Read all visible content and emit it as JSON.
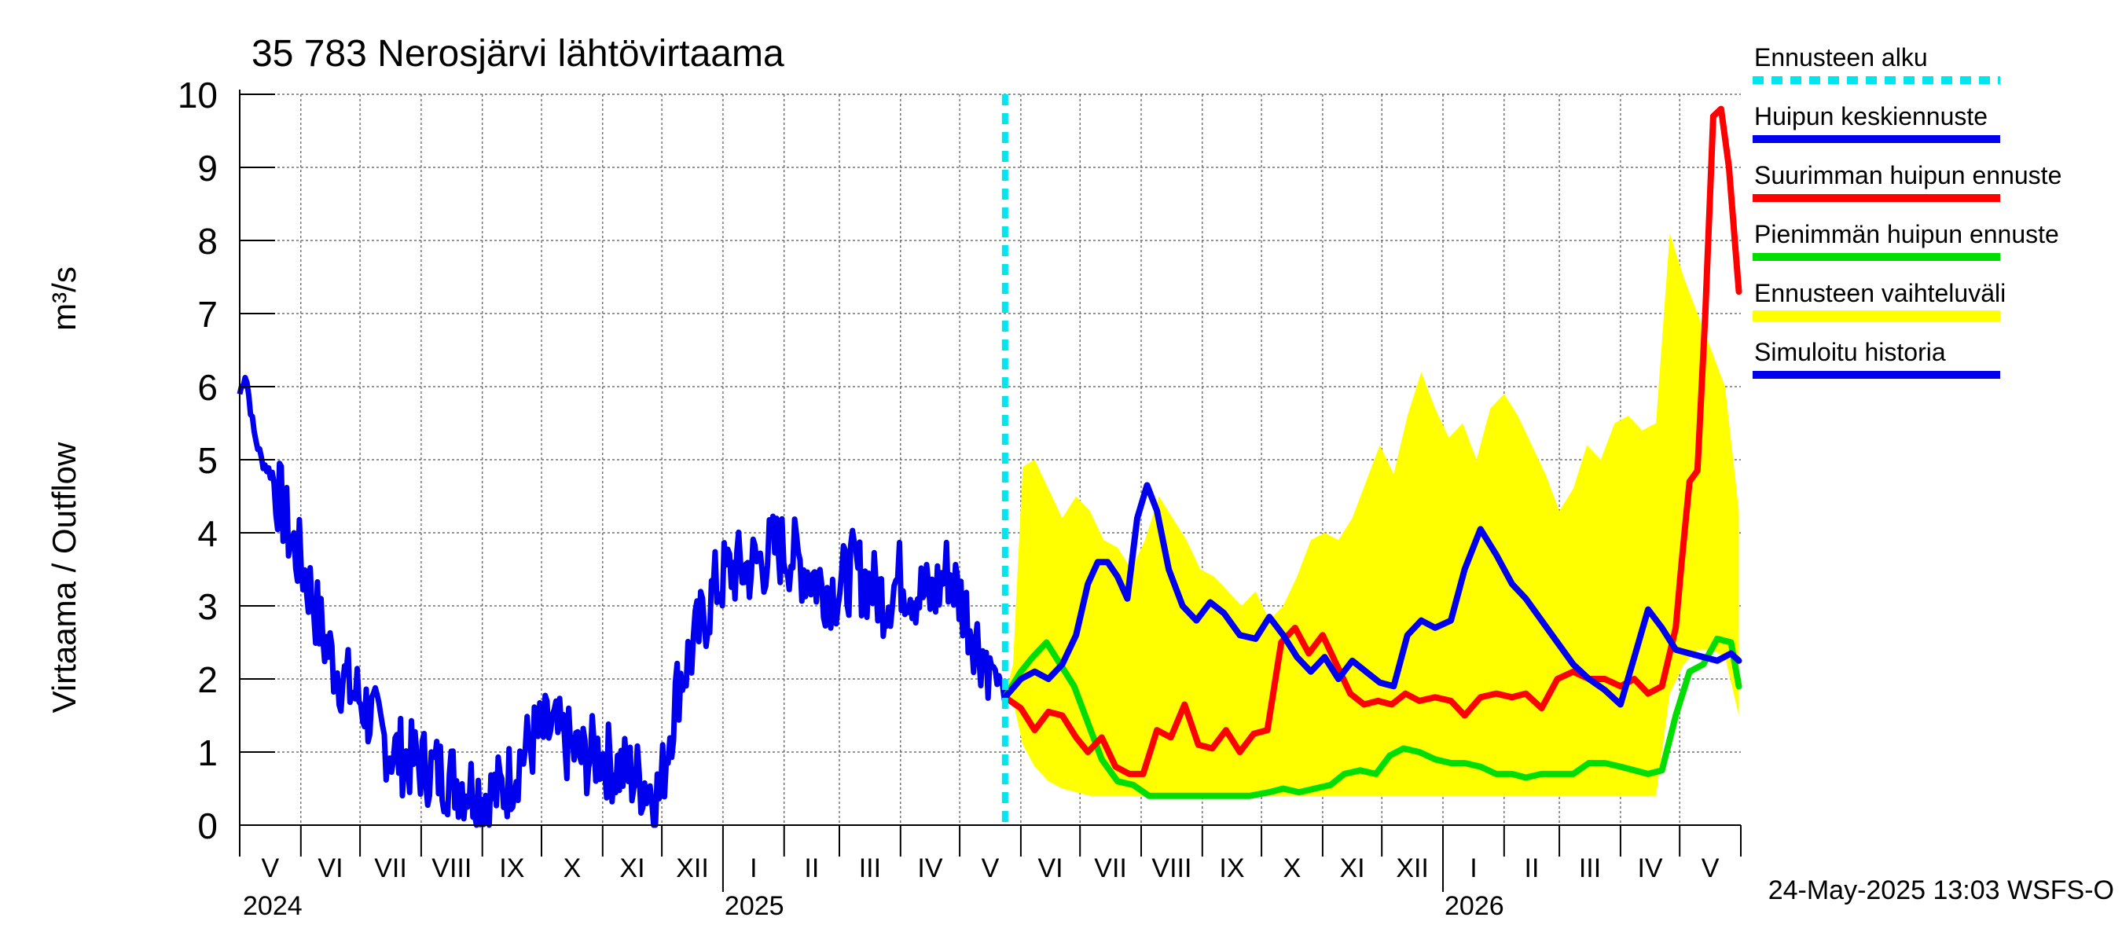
{
  "chart_data": {
    "type": "line",
    "title": "35 783 Nerosjärvi lähtövirtaama",
    "ylabel": "Virtaama / Outflow",
    "yunit": "m³/s",
    "ylim": [
      0,
      10
    ],
    "yticks": [
      0,
      1,
      2,
      3,
      4,
      5,
      6,
      7,
      8,
      9,
      10
    ],
    "xlim": [
      "2024-05-01",
      "2026-05-31"
    ],
    "month_labels": [
      "V",
      "VI",
      "VII",
      "VIII",
      "IX",
      "X",
      "XI",
      "XII",
      "I",
      "II",
      "III",
      "IV",
      "V",
      "VI",
      "VII",
      "VIII",
      "IX",
      "X",
      "XI",
      "XII",
      "I",
      "II",
      "III",
      "IV",
      "V"
    ],
    "year_labels": [
      "2024",
      "2025",
      "2026"
    ],
    "grid": true,
    "legend_position": "right",
    "footer": "24-May-2025 13:03 WSFS-O",
    "forecast_start": "2025-05-24",
    "colors": {
      "forecast_start": "#00e5ee",
      "mean_peak": "#0000ee",
      "max_peak": "#ff0000",
      "min_peak": "#00dd00",
      "range": "#ffff00",
      "history": "#0000ee"
    },
    "series": [
      {
        "name": "Simuloitu historia",
        "key": "history",
        "x": [
          "2024-05-01",
          "2024-05-04",
          "2024-05-08",
          "2024-05-12",
          "2024-05-17",
          "2024-05-22",
          "2024-05-27",
          "2024-06-01",
          "2024-06-06",
          "2024-06-12",
          "2024-06-18",
          "2024-06-25",
          "2024-07-02",
          "2024-07-10",
          "2024-07-18",
          "2024-07-26",
          "2024-08-04",
          "2024-08-12",
          "2024-08-20",
          "2024-08-28",
          "2024-09-05",
          "2024-09-12",
          "2024-09-20",
          "2024-09-28",
          "2024-10-06",
          "2024-10-14",
          "2024-10-22",
          "2024-10-30",
          "2024-11-07",
          "2024-11-15",
          "2024-11-22",
          "2024-11-30",
          "2024-12-05",
          "2024-12-10",
          "2024-12-15",
          "2024-12-22",
          "2024-12-29",
          "2025-01-05",
          "2025-01-12",
          "2025-01-20",
          "2025-01-28",
          "2025-02-05",
          "2025-02-12",
          "2025-02-20",
          "2025-02-28",
          "2025-03-08",
          "2025-03-16",
          "2025-03-24",
          "2025-04-01",
          "2025-04-09",
          "2025-04-17",
          "2025-04-25",
          "2025-05-03",
          "2025-05-10",
          "2025-05-17",
          "2025-05-24"
        ],
        "y": [
          5.9,
          6.2,
          5.4,
          5.0,
          4.8,
          4.4,
          3.9,
          3.6,
          3.2,
          2.6,
          2.2,
          1.9,
          1.7,
          1.3,
          1.0,
          0.9,
          0.8,
          0.7,
          0.6,
          0.5,
          0.4,
          0.5,
          0.9,
          1.2,
          1.3,
          1.1,
          0.9,
          1.0,
          0.8,
          0.7,
          0.6,
          0.4,
          1.3,
          2.0,
          2.3,
          2.8,
          3.3,
          3.5,
          3.5,
          3.6,
          3.8,
          3.7,
          3.5,
          3.3,
          3.2,
          3.5,
          3.3,
          3.1,
          3.4,
          3.2,
          3.1,
          3.5,
          3.0,
          2.5,
          2.2,
          1.75
        ]
      },
      {
        "name": "Huipun keskiennuste",
        "key": "mean_peak",
        "x": [
          "2025-05-24",
          "2025-06-01",
          "2025-06-08",
          "2025-06-15",
          "2025-06-22",
          "2025-06-29",
          "2025-07-05",
          "2025-07-10",
          "2025-07-15",
          "2025-07-20",
          "2025-07-25",
          "2025-07-30",
          "2025-08-04",
          "2025-08-09",
          "2025-08-15",
          "2025-08-22",
          "2025-08-29",
          "2025-09-05",
          "2025-09-12",
          "2025-09-20",
          "2025-09-28",
          "2025-10-05",
          "2025-10-12",
          "2025-10-19",
          "2025-10-26",
          "2025-11-02",
          "2025-11-09",
          "2025-11-16",
          "2025-11-23",
          "2025-11-30",
          "2025-12-07",
          "2025-12-14",
          "2025-12-21",
          "2025-12-28",
          "2026-01-05",
          "2026-01-12",
          "2026-01-20",
          "2026-01-28",
          "2026-02-05",
          "2026-02-12",
          "2026-02-20",
          "2026-02-28",
          "2026-03-08",
          "2026-03-16",
          "2026-03-24",
          "2026-04-01",
          "2026-04-08",
          "2026-04-15",
          "2026-04-22",
          "2026-04-29",
          "2026-05-06",
          "2026-05-13",
          "2026-05-20",
          "2026-05-27",
          "2026-05-31"
        ],
        "y": [
          1.75,
          2.0,
          2.1,
          2.0,
          2.2,
          2.6,
          3.3,
          3.6,
          3.6,
          3.4,
          3.1,
          4.2,
          4.65,
          4.3,
          3.5,
          3.0,
          2.8,
          3.05,
          2.9,
          2.6,
          2.55,
          2.85,
          2.6,
          2.3,
          2.1,
          2.3,
          2.0,
          2.25,
          2.1,
          1.95,
          1.9,
          2.6,
          2.8,
          2.7,
          2.8,
          3.5,
          4.05,
          3.7,
          3.3,
          3.1,
          2.8,
          2.5,
          2.2,
          2.0,
          1.85,
          1.65,
          2.3,
          2.95,
          2.7,
          2.4,
          2.35,
          2.3,
          2.25,
          2.35,
          2.25
        ]
      },
      {
        "name": "Suurimman huipun ennuste",
        "key": "max_peak",
        "x": [
          "2025-05-24",
          "2025-06-01",
          "2025-06-08",
          "2025-06-15",
          "2025-06-22",
          "2025-06-29",
          "2025-07-05",
          "2025-07-12",
          "2025-07-19",
          "2025-07-26",
          "2025-08-02",
          "2025-08-09",
          "2025-08-16",
          "2025-08-23",
          "2025-08-30",
          "2025-09-06",
          "2025-09-13",
          "2025-09-20",
          "2025-09-27",
          "2025-10-04",
          "2025-10-11",
          "2025-10-18",
          "2025-10-25",
          "2025-11-01",
          "2025-11-08",
          "2025-11-15",
          "2025-11-22",
          "2025-11-29",
          "2025-12-06",
          "2025-12-13",
          "2025-12-20",
          "2025-12-28",
          "2026-01-05",
          "2026-01-12",
          "2026-01-20",
          "2026-01-28",
          "2026-02-05",
          "2026-02-12",
          "2026-02-20",
          "2026-02-28",
          "2026-03-08",
          "2026-03-16",
          "2026-03-24",
          "2026-04-01",
          "2026-04-08",
          "2026-04-15",
          "2026-04-22",
          "2026-04-29",
          "2026-05-02",
          "2026-05-06",
          "2026-05-10",
          "2026-05-14",
          "2026-05-18",
          "2026-05-22",
          "2026-05-26",
          "2026-05-31"
        ],
        "y": [
          1.75,
          1.6,
          1.3,
          1.55,
          1.5,
          1.2,
          1.0,
          1.2,
          0.8,
          0.7,
          0.7,
          1.3,
          1.2,
          1.65,
          1.1,
          1.05,
          1.3,
          1.0,
          1.25,
          1.3,
          2.5,
          2.7,
          2.35,
          2.6,
          2.2,
          1.8,
          1.65,
          1.7,
          1.65,
          1.8,
          1.7,
          1.75,
          1.7,
          1.5,
          1.75,
          1.8,
          1.75,
          1.8,
          1.6,
          2.0,
          2.1,
          2.0,
          2.0,
          1.9,
          2.0,
          1.8,
          1.9,
          2.7,
          3.6,
          4.7,
          4.85,
          7.0,
          9.7,
          9.8,
          9.0,
          7.3
        ]
      },
      {
        "name": "Pienimmän huipun ennuste",
        "key": "min_peak",
        "x": [
          "2025-05-24",
          "2025-06-01",
          "2025-06-07",
          "2025-06-14",
          "2025-06-21",
          "2025-06-28",
          "2025-07-05",
          "2025-07-12",
          "2025-07-20",
          "2025-07-28",
          "2025-08-05",
          "2025-08-15",
          "2025-08-25",
          "2025-09-05",
          "2025-09-15",
          "2025-09-25",
          "2025-10-05",
          "2025-10-12",
          "2025-10-20",
          "2025-10-28",
          "2025-11-05",
          "2025-11-12",
          "2025-11-20",
          "2025-11-28",
          "2025-12-05",
          "2025-12-12",
          "2025-12-20",
          "2025-12-28",
          "2026-01-05",
          "2026-01-12",
          "2026-01-20",
          "2026-01-28",
          "2026-02-05",
          "2026-02-12",
          "2026-02-20",
          "2026-02-28",
          "2026-03-08",
          "2026-03-16",
          "2026-03-24",
          "2026-04-01",
          "2026-04-08",
          "2026-04-15",
          "2026-04-22",
          "2026-04-29",
          "2026-05-06",
          "2026-05-13",
          "2026-05-20",
          "2026-05-27",
          "2026-05-31"
        ],
        "y": [
          1.75,
          2.1,
          2.3,
          2.5,
          2.2,
          1.9,
          1.4,
          0.9,
          0.6,
          0.55,
          0.4,
          0.4,
          0.4,
          0.4,
          0.4,
          0.4,
          0.45,
          0.5,
          0.45,
          0.5,
          0.55,
          0.7,
          0.75,
          0.7,
          0.95,
          1.05,
          1.0,
          0.9,
          0.85,
          0.85,
          0.8,
          0.7,
          0.7,
          0.65,
          0.7,
          0.7,
          0.7,
          0.85,
          0.85,
          0.8,
          0.75,
          0.7,
          0.75,
          1.5,
          2.1,
          2.2,
          2.55,
          2.5,
          1.9
        ]
      },
      {
        "name": "Ennusteen vaihteluväli",
        "key": "range",
        "x": [
          "2025-05-24",
          "2025-05-28",
          "2025-06-02",
          "2025-06-08",
          "2025-06-15",
          "2025-06-22",
          "2025-06-29",
          "2025-07-06",
          "2025-07-13",
          "2025-07-20",
          "2025-07-27",
          "2025-08-03",
          "2025-08-10",
          "2025-08-17",
          "2025-08-24",
          "2025-08-31",
          "2025-09-07",
          "2025-09-14",
          "2025-09-21",
          "2025-09-28",
          "2025-10-05",
          "2025-10-12",
          "2025-10-19",
          "2025-10-26",
          "2025-11-02",
          "2025-11-09",
          "2025-11-16",
          "2025-11-23",
          "2025-11-30",
          "2025-12-07",
          "2025-12-14",
          "2025-12-21",
          "2025-12-28",
          "2026-01-04",
          "2026-01-11",
          "2026-01-18",
          "2026-01-25",
          "2026-02-01",
          "2026-02-08",
          "2026-02-15",
          "2026-02-22",
          "2026-03-01",
          "2026-03-08",
          "2026-03-15",
          "2026-03-22",
          "2026-03-29",
          "2026-04-05",
          "2026-04-12",
          "2026-04-19",
          "2026-04-26",
          "2026-05-03",
          "2026-05-10",
          "2026-05-17",
          "2026-05-24",
          "2026-05-31"
        ],
        "upper": [
          1.75,
          2.2,
          4.9,
          5.0,
          4.6,
          4.2,
          4.5,
          4.3,
          3.9,
          3.8,
          3.5,
          3.9,
          4.5,
          4.2,
          3.9,
          3.5,
          3.4,
          3.2,
          3.0,
          3.2,
          2.8,
          3.0,
          3.4,
          3.9,
          4.0,
          3.9,
          4.2,
          4.7,
          5.2,
          4.8,
          5.6,
          6.2,
          5.7,
          5.3,
          5.5,
          5.0,
          5.7,
          5.9,
          5.6,
          5.2,
          4.8,
          4.3,
          4.6,
          5.2,
          5.0,
          5.5,
          5.6,
          5.4,
          5.5,
          8.1,
          7.5,
          7.0,
          6.5,
          6.0,
          4.3
        ],
        "lower": [
          1.75,
          1.7,
          1.1,
          0.8,
          0.6,
          0.5,
          0.45,
          0.4,
          0.4,
          0.4,
          0.4,
          0.4,
          0.4,
          0.4,
          0.4,
          0.4,
          0.4,
          0.4,
          0.4,
          0.4,
          0.4,
          0.4,
          0.4,
          0.4,
          0.4,
          0.4,
          0.4,
          0.4,
          0.4,
          0.4,
          0.4,
          0.4,
          0.4,
          0.4,
          0.4,
          0.4,
          0.4,
          0.4,
          0.4,
          0.4,
          0.4,
          0.4,
          0.4,
          0.4,
          0.4,
          0.4,
          0.4,
          0.4,
          0.4,
          1.8,
          2.2,
          2.4,
          2.4,
          2.3,
          1.5
        ]
      }
    ],
    "legend": [
      {
        "label": "Ennusteen alku",
        "key": "forecast_start",
        "style": "dashed"
      },
      {
        "label": "Huipun keskiennuste",
        "key": "mean_peak",
        "style": "solid"
      },
      {
        "label": "Suurimman huipun ennuste",
        "key": "max_peak",
        "style": "solid"
      },
      {
        "label": "Pienimmän huipun ennuste",
        "key": "min_peak",
        "style": "solid"
      },
      {
        "label": "Ennusteen vaihteluväli",
        "key": "range",
        "style": "solid"
      },
      {
        "label": "Simuloitu historia",
        "key": "history",
        "style": "solid"
      }
    ]
  }
}
